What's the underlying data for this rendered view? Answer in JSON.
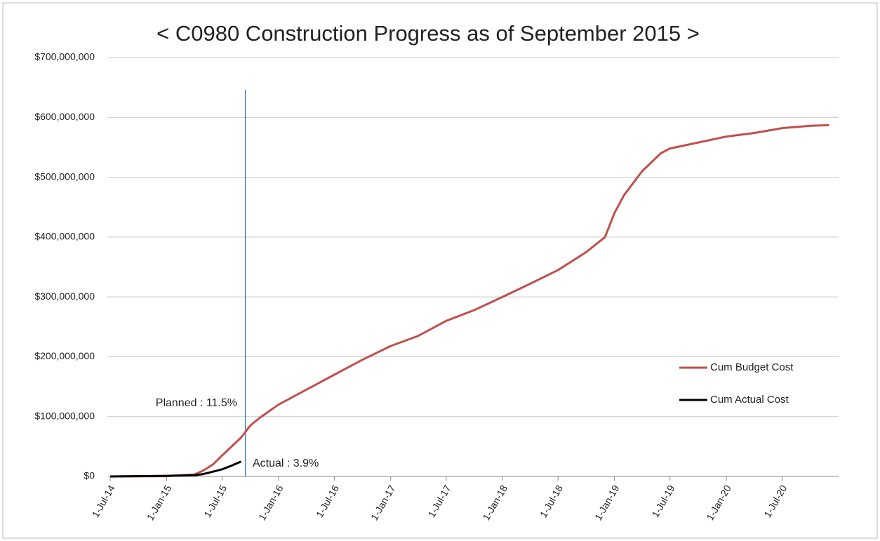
{
  "chart_data": {
    "type": "line",
    "title": "< C0980 Construction Progress as of September 2015 >",
    "x": [
      "2014-07",
      "2015-01",
      "2015-04",
      "2015-05",
      "2015-06",
      "2015-07",
      "2015-08",
      "2015-09",
      "2015-10",
      "2015-11",
      "2016-01",
      "2016-04",
      "2016-07",
      "2016-10",
      "2017-01",
      "2017-04",
      "2017-07",
      "2017-10",
      "2018-01",
      "2018-04",
      "2018-07",
      "2018-10",
      "2018-12",
      "2019-01",
      "2019-02",
      "2019-04",
      "2019-06",
      "2019-07",
      "2019-10",
      "2020-01",
      "2020-04",
      "2020-07",
      "2020-10",
      "2020-12"
    ],
    "series": [
      {
        "name": "Cum Budget Cost",
        "color": "#c0504d",
        "values": [
          0,
          500000,
          3000000,
          10000000,
          20000000,
          35000000,
          50000000,
          65000000,
          85000000,
          98000000,
          120000000,
          145000000,
          170000000,
          195000000,
          218000000,
          235000000,
          260000000,
          278000000,
          300000000,
          322000000,
          345000000,
          375000000,
          400000000,
          440000000,
          470000000,
          510000000,
          540000000,
          548000000,
          558000000,
          568000000,
          574000000,
          582000000,
          586000000,
          587000000
        ]
      },
      {
        "name": "Cum Actual Cost",
        "color": "#000000",
        "values": [
          0,
          1000000,
          2000000,
          4000000,
          8000000,
          12000000,
          18000000,
          25000000,
          null,
          null,
          null,
          null,
          null,
          null,
          null,
          null,
          null,
          null,
          null,
          null,
          null,
          null,
          null,
          null,
          null,
          null,
          null,
          null,
          null,
          null,
          null,
          null,
          null,
          null
        ]
      }
    ],
    "xlim": [
      "2014-07-01",
      "2021-01-01"
    ],
    "xticks": [
      {
        "value": "2014-07-01",
        "label": "1-Jul-14"
      },
      {
        "value": "2015-01-01",
        "label": "1-Jan-15"
      },
      {
        "value": "2015-07-01",
        "label": "1-Jul-15"
      },
      {
        "value": "2016-01-01",
        "label": "1-Jan-16"
      },
      {
        "value": "2016-07-01",
        "label": "1-Jul-16"
      },
      {
        "value": "2017-01-01",
        "label": "1-Jan-17"
      },
      {
        "value": "2017-07-01",
        "label": "1-Jul-17"
      },
      {
        "value": "2018-01-01",
        "label": "1-Jan-18"
      },
      {
        "value": "2018-07-01",
        "label": "1-Jul-18"
      },
      {
        "value": "2019-01-01",
        "label": "1-Jan-19"
      },
      {
        "value": "2019-07-01",
        "label": "1-Jul-19"
      },
      {
        "value": "2020-01-01",
        "label": "1-Jan-20"
      },
      {
        "value": "2020-07-01",
        "label": "1-Jul-20"
      }
    ],
    "ylim": [
      0,
      700000000
    ],
    "yticks": [
      {
        "value": 0,
        "label": "$0"
      },
      {
        "value": 100000000,
        "label": "$100,000,000"
      },
      {
        "value": 200000000,
        "label": "$200,000,000"
      },
      {
        "value": 300000000,
        "label": "$300,000,000"
      },
      {
        "value": 400000000,
        "label": "$400,000,000"
      },
      {
        "value": 500000000,
        "label": "$500,000,000"
      },
      {
        "value": 600000000,
        "label": "$600,000,000"
      },
      {
        "value": 700000000,
        "label": "$700,000,000"
      }
    ],
    "grid": true,
    "legend": "right",
    "status_line": {
      "x": "2015-09-15",
      "color": "#4f81bd"
    },
    "annotations": [
      "Planned : 11.5%",
      "Actual : 3.9%"
    ]
  }
}
